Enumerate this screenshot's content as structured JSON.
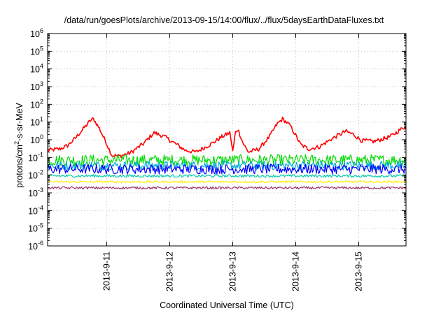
{
  "chart_data": {
    "type": "line",
    "title": "/data/run/goesPlots/archive/2013-09-15/14:00/flux/../flux/5daysEarthDataFluxes.txt",
    "xlabel": "Coordinated Universal Time (UTC)",
    "ylabel_prefix": "protons/cm",
    "ylabel_sup": "2",
    "ylabel_suffix": "-s-sr-MeV",
    "yscale": "log",
    "ylim_exp": [
      -6,
      6
    ],
    "y_tick_base": "10",
    "y_tick_exponents": [
      -6,
      -5,
      -4,
      -3,
      -2,
      -1,
      0,
      1,
      2,
      3,
      4,
      5,
      6
    ],
    "xlim": [
      "2013-09-10 01:30",
      "2013-09-15 18:00"
    ],
    "x_ticks": [
      "2013-9-11",
      "2013-9-12",
      "2013-9-13",
      "2013-9-14",
      "2013-9-15"
    ],
    "grid": true,
    "series": [
      {
        "color": "#ff0000",
        "noise_log": 0.12,
        "points": [
          [
            "2013-09-10 01:30",
            0.25
          ],
          [
            "2013-09-10 06:00",
            0.3
          ],
          [
            "2013-09-10 09:00",
            0.45
          ],
          [
            "2013-09-10 12:00",
            1.2
          ],
          [
            "2013-09-10 15:00",
            4.0
          ],
          [
            "2013-09-10 18:00",
            13.0
          ],
          [
            "2013-09-10 19:00",
            15.0
          ],
          [
            "2013-09-10 21:00",
            5.0
          ],
          [
            "2013-09-11 00:00",
            0.6
          ],
          [
            "2013-09-11 02:00",
            0.13
          ],
          [
            "2013-09-11 05:00",
            0.12
          ],
          [
            "2013-09-11 09:00",
            0.18
          ],
          [
            "2013-09-11 14:00",
            0.6
          ],
          [
            "2013-09-11 18:00",
            2.5
          ],
          [
            "2013-09-11 22:00",
            1.5
          ],
          [
            "2013-09-12 03:00",
            0.5
          ],
          [
            "2013-09-12 06:00",
            0.25
          ],
          [
            "2013-09-12 10:00",
            0.2
          ],
          [
            "2013-09-12 16:00",
            0.6
          ],
          [
            "2013-09-12 20:00",
            1.5
          ],
          [
            "2013-09-12 23:00",
            2.5
          ],
          [
            "2013-09-13 00:00",
            0.2
          ],
          [
            "2013-09-13 01:00",
            2.5
          ],
          [
            "2013-09-13 02:00",
            4.0
          ],
          [
            "2013-09-13 04:00",
            0.6
          ],
          [
            "2013-09-13 06:00",
            0.2
          ],
          [
            "2013-09-13 10:00",
            0.3
          ],
          [
            "2013-09-13 14:00",
            1.5
          ],
          [
            "2013-09-13 17:00",
            8.0
          ],
          [
            "2013-09-13 19:00",
            15.0
          ],
          [
            "2013-09-13 22:00",
            6.0
          ],
          [
            "2013-09-14 02:00",
            0.5
          ],
          [
            "2013-09-14 05:00",
            0.3
          ],
          [
            "2013-09-14 09:00",
            0.4
          ],
          [
            "2013-09-14 14:00",
            1.2
          ],
          [
            "2013-09-14 19:00",
            3.0
          ],
          [
            "2013-09-14 22:00",
            2.0
          ],
          [
            "2013-09-15 01:00",
            0.9
          ],
          [
            "2013-09-15 06:00",
            0.8
          ],
          [
            "2013-09-15 12:00",
            1.5
          ],
          [
            "2013-09-15 18:00",
            6.0
          ]
        ]
      },
      {
        "color": "#00dd00",
        "noise_log": 0.32,
        "points": [
          [
            "2013-09-10 01:30",
            0.07
          ],
          [
            "2013-09-15 18:00",
            0.07
          ]
        ]
      },
      {
        "color": "#00aadd",
        "noise_log": 0.26,
        "points": [
          [
            "2013-09-10 01:30",
            0.035
          ],
          [
            "2013-09-15 18:00",
            0.035
          ]
        ]
      },
      {
        "color": "#0000ff",
        "noise_log": 0.28,
        "points": [
          [
            "2013-09-10 01:30",
            0.022
          ],
          [
            "2013-09-15 18:00",
            0.022
          ]
        ]
      },
      {
        "color": "#00ccaa",
        "noise_log": 0.08,
        "points": [
          [
            "2013-09-10 01:30",
            0.009
          ],
          [
            "2013-09-15 18:00",
            0.009
          ]
        ]
      },
      {
        "color": "#ffee00",
        "noise_log": 0.06,
        "points": [
          [
            "2013-09-10 01:30",
            0.0042
          ],
          [
            "2013-09-15 18:00",
            0.0042
          ]
        ]
      },
      {
        "color": "#993366",
        "noise_log": 0.07,
        "points": [
          [
            "2013-09-10 01:30",
            0.0019
          ],
          [
            "2013-09-15 18:00",
            0.0019
          ]
        ]
      }
    ]
  }
}
